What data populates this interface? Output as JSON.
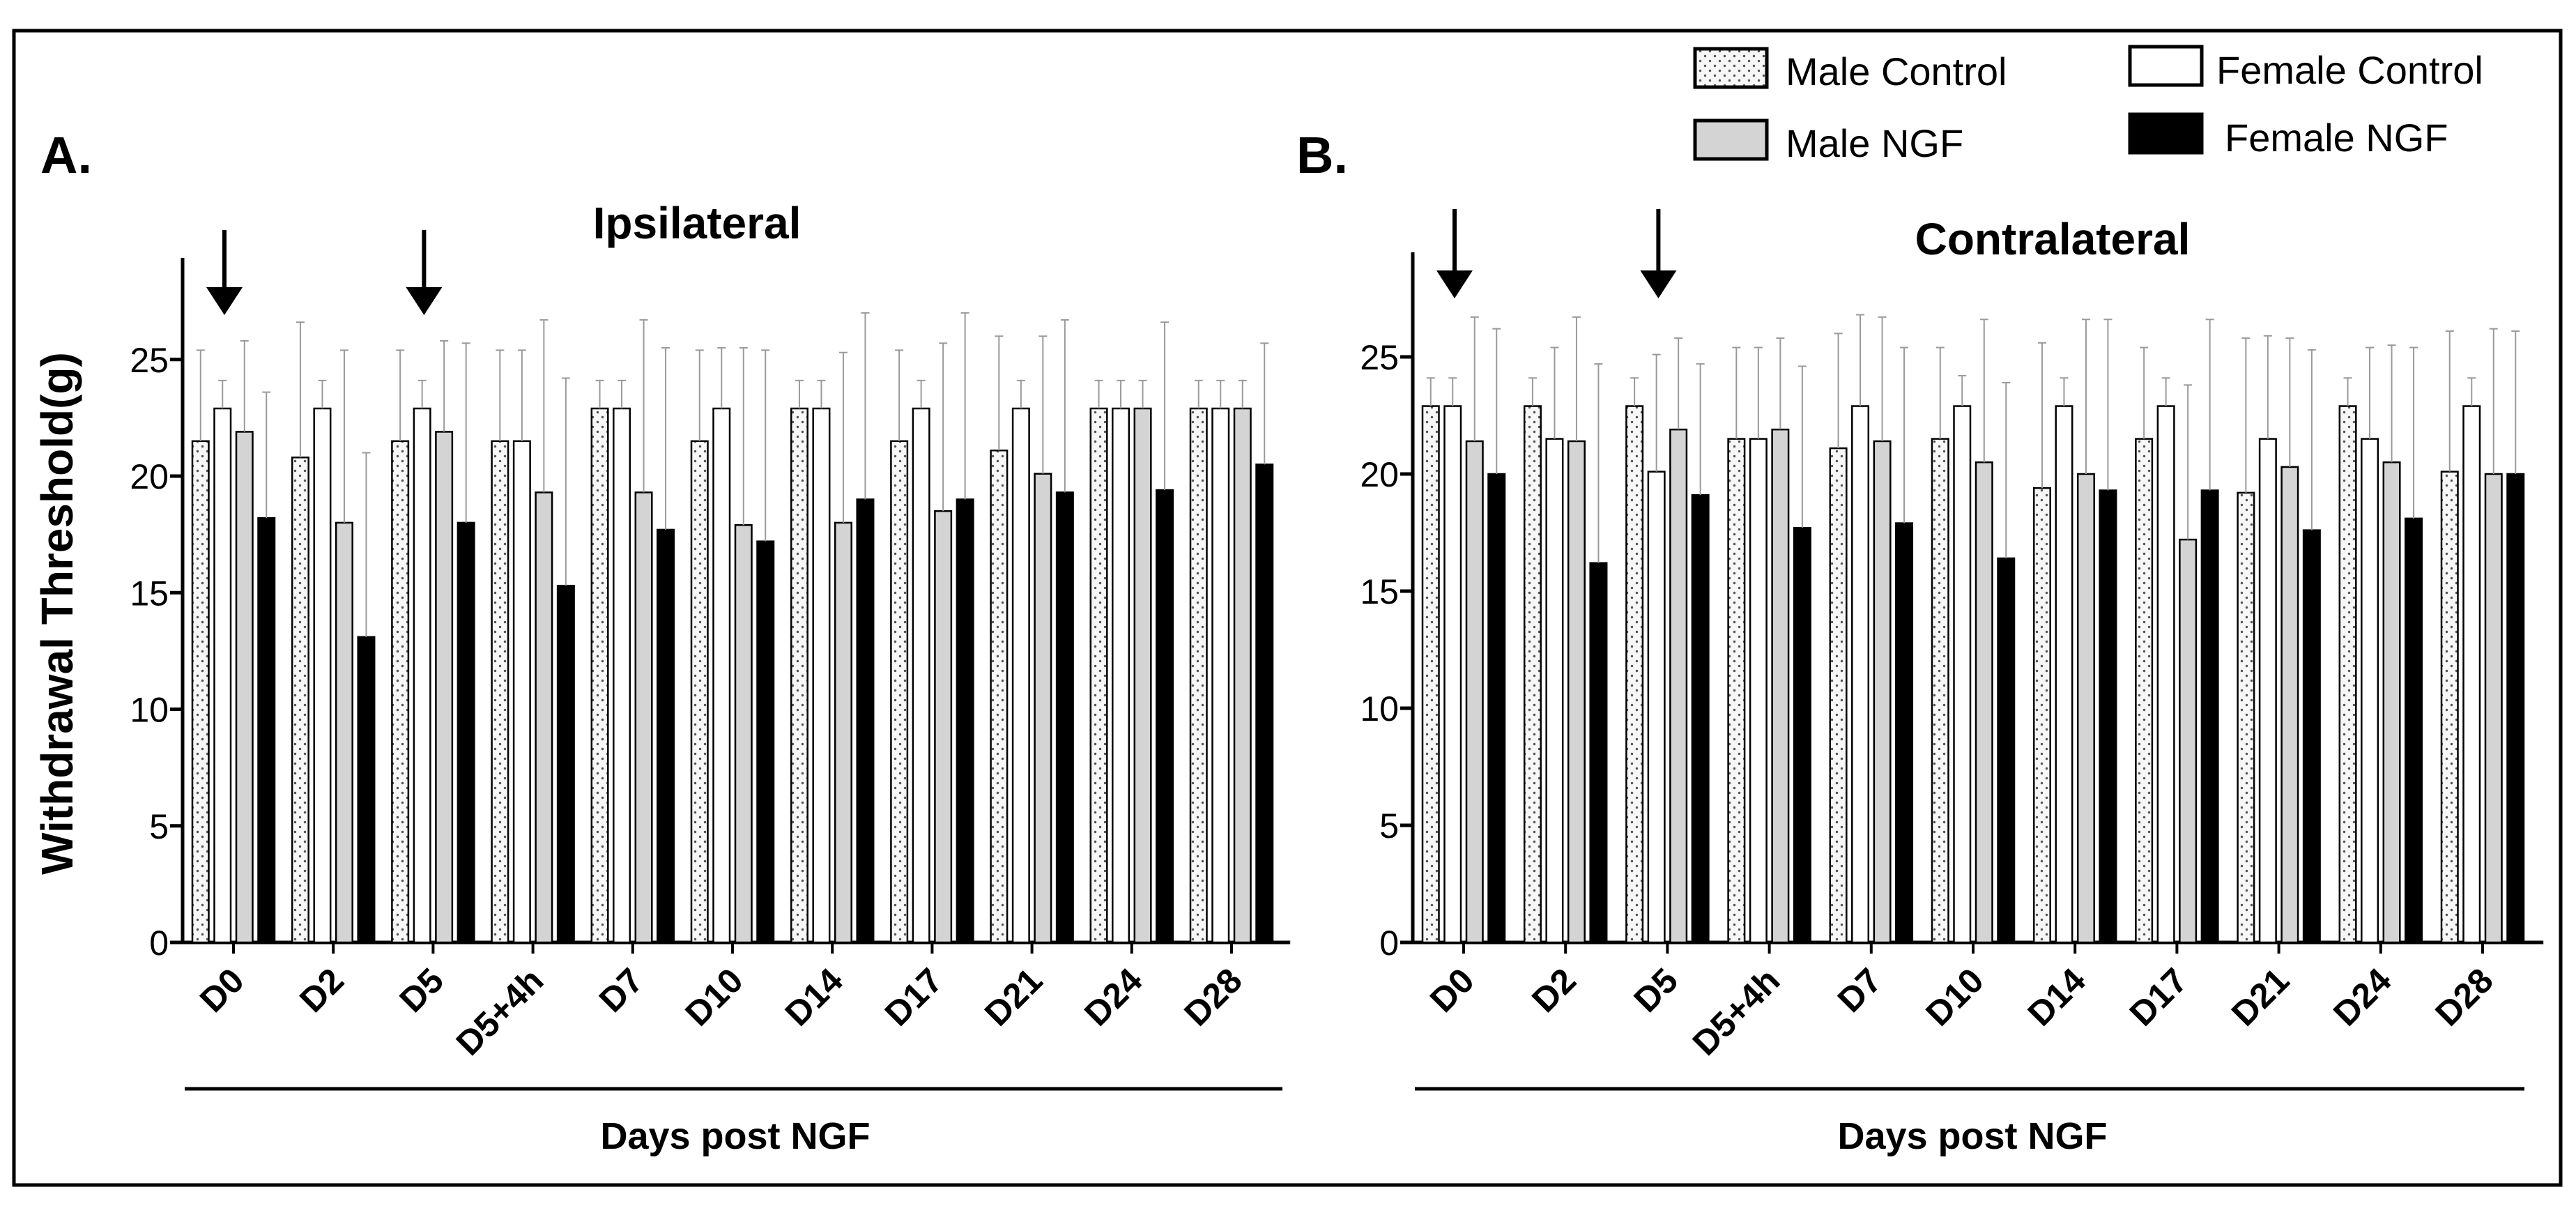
{
  "figure": {
    "legend": {
      "male_control": "Male Control",
      "female_control": "Female Control",
      "male_ngf": "Male NGF",
      "female_ngf": "Female NGF"
    },
    "colors": {
      "male_control": "#f4f4f4",
      "female_control": "#ffffff",
      "male_ngf": "#d4d4d4",
      "female_ngf": "#000000"
    }
  },
  "chart_data": [
    {
      "type": "bar",
      "panel_label": "A.",
      "title": "Ipsilateral",
      "ylabel": "Withdrawal Threshold(g)",
      "xlabel": "Days post NGF",
      "ylim": [
        0,
        29
      ],
      "yticks": [
        0,
        5,
        10,
        15,
        20,
        25
      ],
      "categories": [
        "D0",
        "D2",
        "D5",
        "D5+4h",
        "D7",
        "D10",
        "D14",
        "D17",
        "D21",
        "D24",
        "D28"
      ],
      "arrows_at": [
        "D0",
        "D5"
      ],
      "series": [
        {
          "name": "Male Control",
          "key": "male_control",
          "values": [
            21.5,
            20.8,
            21.5,
            21.5,
            22.9,
            21.5,
            22.9,
            21.5,
            21.1,
            22.9,
            22.9
          ],
          "errors": [
            3.9,
            5.8,
            3.9,
            3.9,
            1.2,
            3.9,
            1.2,
            3.9,
            4.9,
            1.2,
            1.2
          ]
        },
        {
          "name": "Female Control",
          "key": "female_control",
          "values": [
            22.9,
            22.9,
            22.9,
            21.5,
            22.9,
            22.9,
            22.9,
            22.9,
            22.9,
            22.9,
            22.9
          ],
          "errors": [
            1.2,
            1.2,
            1.2,
            3.9,
            1.2,
            2.6,
            1.2,
            1.2,
            1.2,
            1.2,
            1.2
          ]
        },
        {
          "name": "Male NGF",
          "key": "male_ngf",
          "values": [
            21.9,
            18.0,
            21.9,
            19.3,
            19.3,
            17.9,
            18.0,
            18.5,
            20.1,
            22.9,
            22.9
          ],
          "errors": [
            3.9,
            7.4,
            3.9,
            7.4,
            7.4,
            7.6,
            7.3,
            7.2,
            5.9,
            1.2,
            1.2
          ]
        },
        {
          "name": "Female NGF",
          "key": "female_ngf",
          "values": [
            18.2,
            13.1,
            18.0,
            15.3,
            17.7,
            17.2,
            19.0,
            19.0,
            19.3,
            19.4,
            20.5
          ],
          "errors": [
            5.4,
            7.9,
            7.7,
            8.9,
            7.8,
            8.2,
            8.0,
            8.0,
            7.4,
            7.2,
            5.2
          ]
        }
      ]
    },
    {
      "type": "bar",
      "panel_label": "B.",
      "title": "Contralateral",
      "xlabel": "Days post NGF",
      "ylim": [
        0,
        29.5
      ],
      "yticks": [
        0,
        5,
        10,
        15,
        20,
        25
      ],
      "categories": [
        "D0",
        "D2",
        "D5",
        "D5+4h",
        "D7",
        "D10",
        "D14",
        "D17",
        "D21",
        "D24",
        "D28"
      ],
      "arrows_at": [
        "D0",
        "D5"
      ],
      "series": [
        {
          "name": "Male Control",
          "key": "male_control",
          "values": [
            22.9,
            22.9,
            22.9,
            21.5,
            21.1,
            21.5,
            19.4,
            21.5,
            19.2,
            22.9,
            20.1
          ],
          "errors": [
            1.2,
            1.2,
            1.2,
            3.9,
            4.9,
            3.9,
            6.2,
            3.9,
            6.6,
            1.2,
            6.0
          ]
        },
        {
          "name": "Female Control",
          "key": "female_control",
          "values": [
            22.9,
            21.5,
            20.1,
            21.5,
            22.9,
            22.9,
            22.9,
            22.9,
            21.5,
            21.5,
            22.9
          ],
          "errors": [
            1.2,
            3.9,
            5.0,
            3.9,
            3.9,
            1.3,
            1.2,
            1.2,
            4.4,
            3.9,
            1.2
          ]
        },
        {
          "name": "Male NGF",
          "key": "male_ngf",
          "values": [
            21.4,
            21.4,
            21.9,
            21.9,
            21.4,
            20.5,
            20.0,
            17.2,
            20.3,
            20.5,
            20.0
          ],
          "errors": [
            5.3,
            5.3,
            3.9,
            3.9,
            5.3,
            6.1,
            6.6,
            6.6,
            5.5,
            5.0,
            6.2
          ]
        },
        {
          "name": "Female NGF",
          "key": "female_ngf",
          "values": [
            20.0,
            16.2,
            19.1,
            17.7,
            17.9,
            16.4,
            19.3,
            19.3,
            17.6,
            18.1,
            20.0
          ],
          "errors": [
            6.2,
            8.5,
            5.6,
            6.9,
            7.5,
            7.5,
            7.3,
            7.3,
            7.7,
            7.3,
            6.1
          ]
        }
      ]
    }
  ]
}
